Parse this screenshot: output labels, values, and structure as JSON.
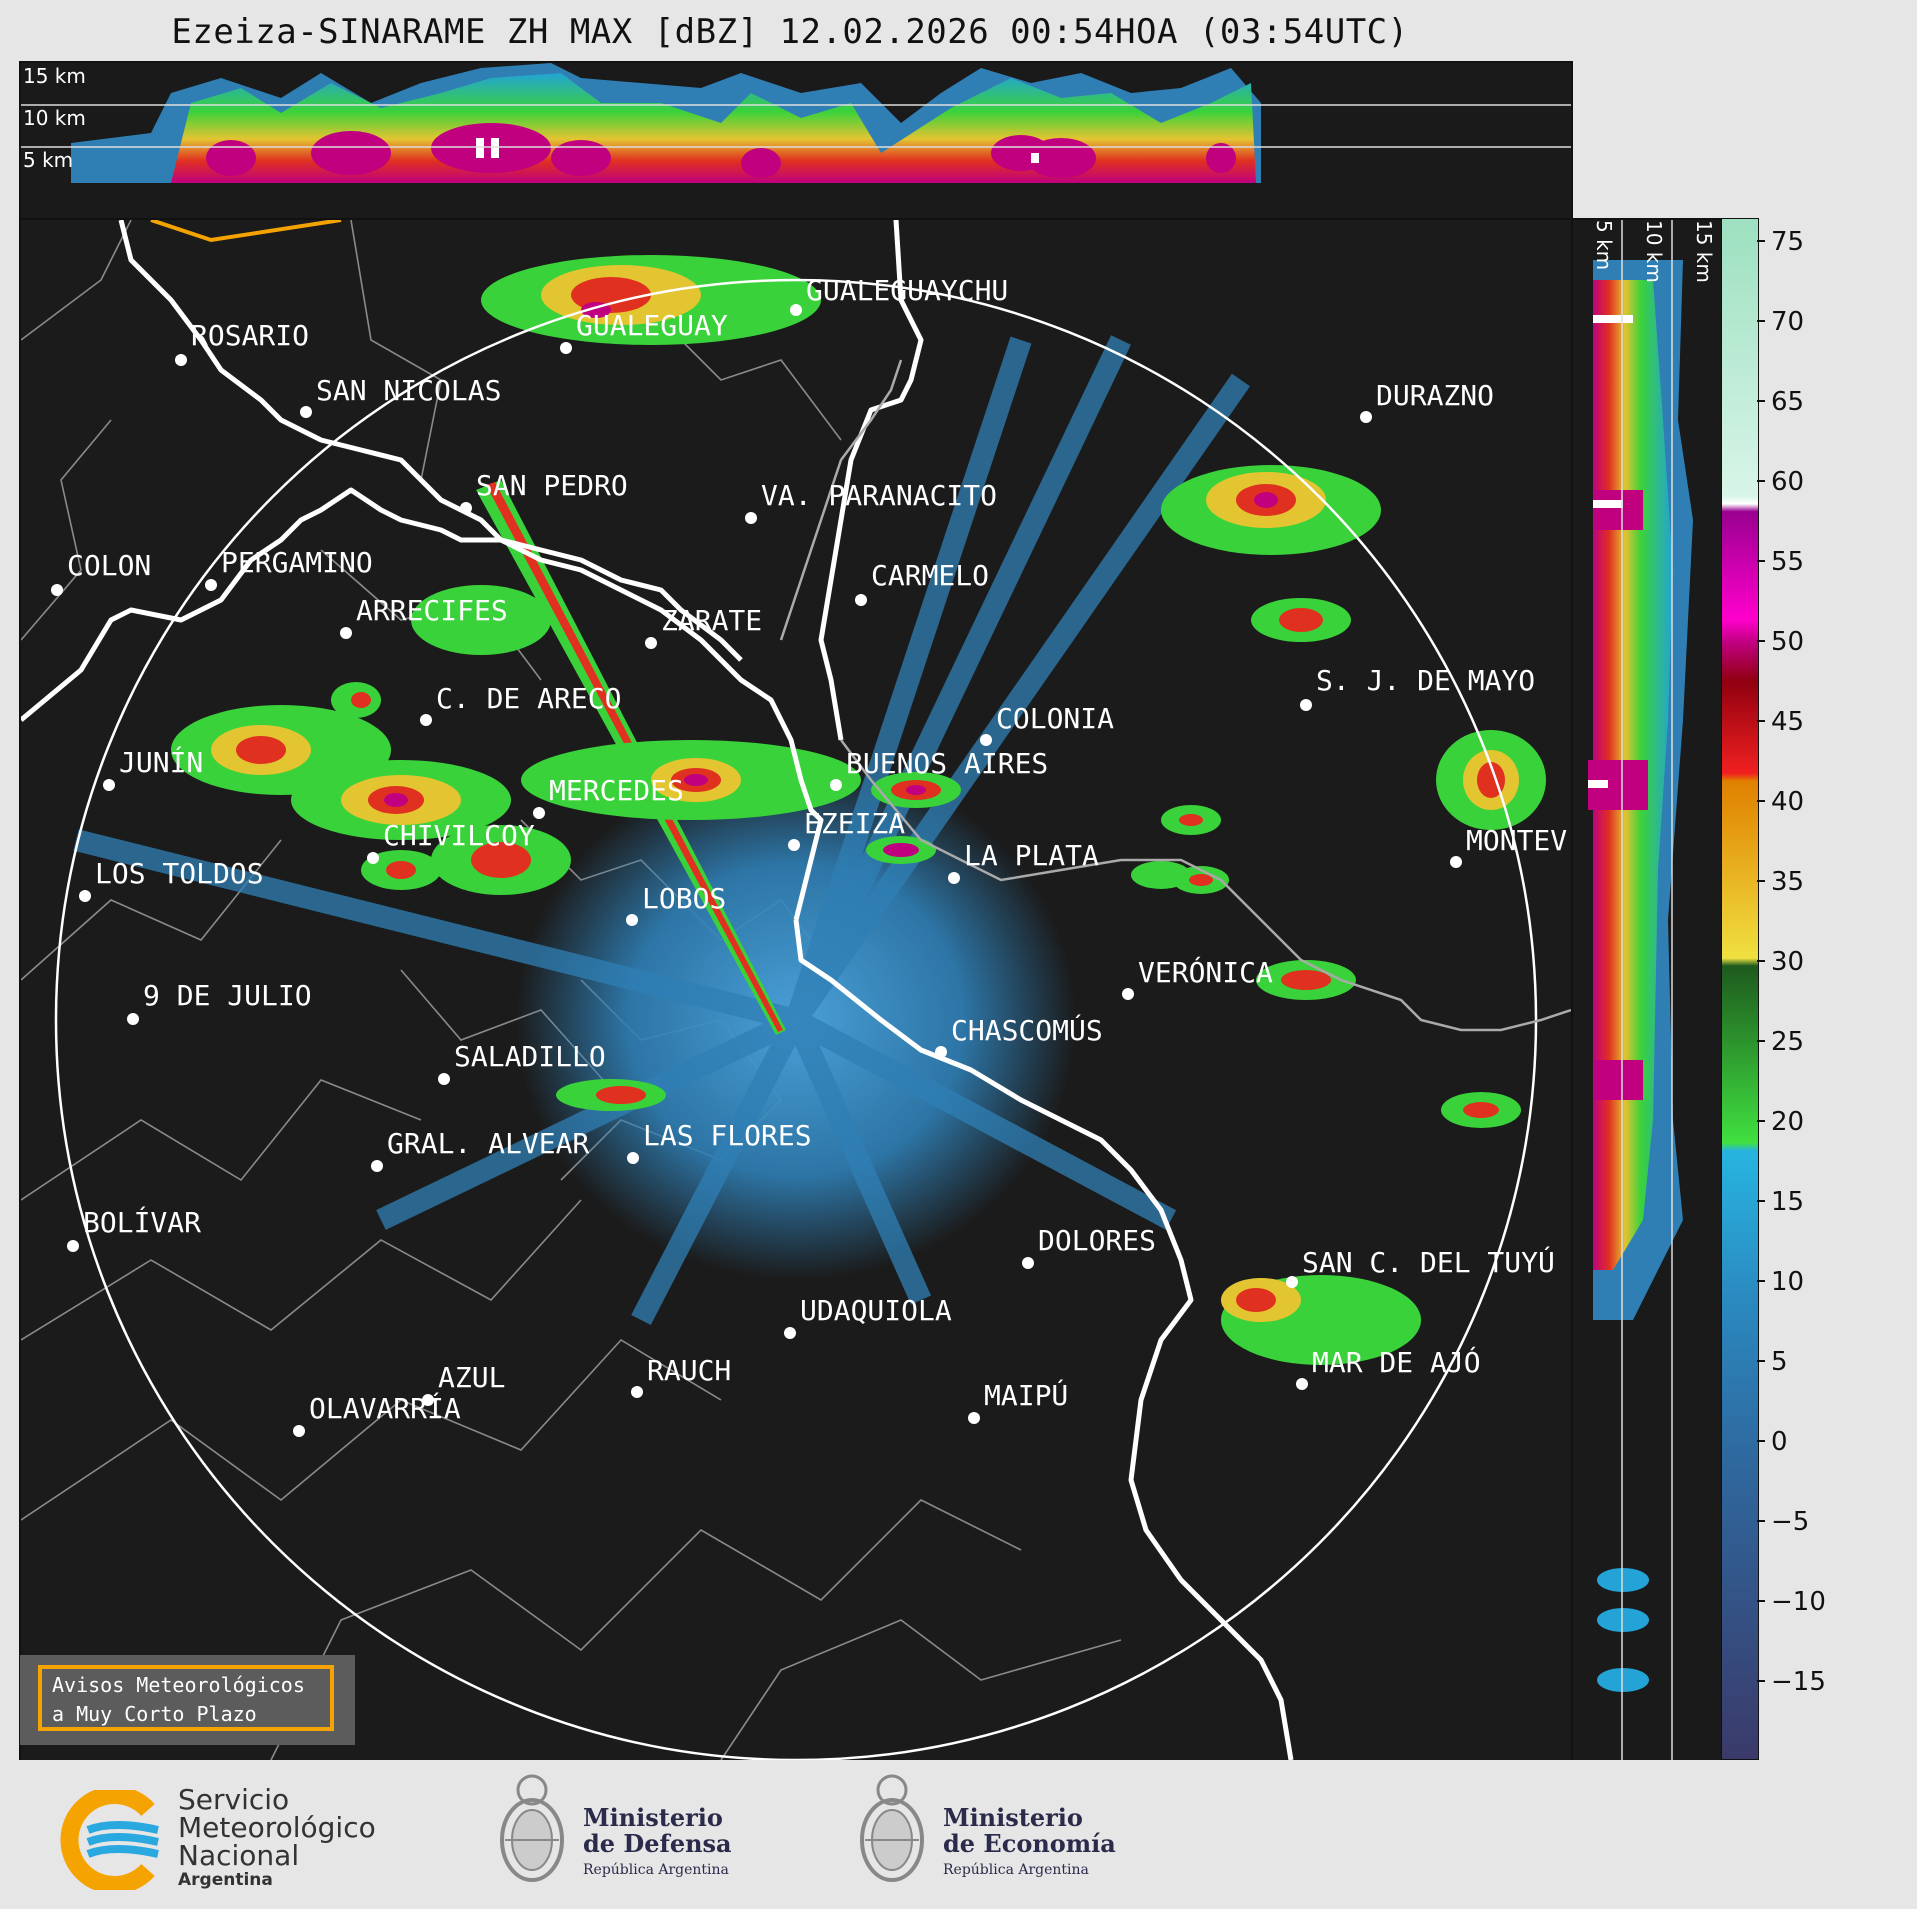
{
  "header": {
    "title": "Ezeiza-SINARAME ZH MAX [dBZ] 12.02.2026 00:54HOA (03:54UTC)"
  },
  "top_panel": {
    "height_labels": [
      "15 km",
      "10 km",
      "5 km"
    ]
  },
  "side_panel": {
    "height_labels": [
      "5 km",
      "10 km",
      "15 km"
    ]
  },
  "colorbar": {
    "ticks": [
      "75",
      "70",
      "65",
      "60",
      "55",
      "50",
      "45",
      "40",
      "35",
      "30",
      "25",
      "20",
      "15",
      "10",
      "5",
      "0",
      "−5",
      "−10",
      "−15"
    ],
    "colors": {
      "lt_m15": "#3b3f6e",
      "m15_0": "#3e5a8c",
      "0_17": "#2f7fb5",
      "17_20": "#23a3d6",
      "20_30": "#2f8f2a",
      "30_42": "#e3c431",
      "42_50": "#e03020",
      "50_58": "#c0007f",
      "58_60": "#ffffff",
      "60_75": "#9de0c0"
    }
  },
  "map": {
    "cities": [
      {
        "name": "ROSARIO"
      },
      {
        "name": "GUALEGUAYCHU"
      },
      {
        "name": "GUALEGUAY"
      },
      {
        "name": "SAN NICOLAS"
      },
      {
        "name": "DURAZNO"
      },
      {
        "name": "SAN PEDRO"
      },
      {
        "name": "VA. PARANACITO"
      },
      {
        "name": "COLON"
      },
      {
        "name": "PERGAMINO"
      },
      {
        "name": "CARMELO"
      },
      {
        "name": "ARRECIFES"
      },
      {
        "name": "ZARATE"
      },
      {
        "name": "S. J. DE MAYO"
      },
      {
        "name": "C. DE ARECO"
      },
      {
        "name": "COLONIA"
      },
      {
        "name": "JUNÍN"
      },
      {
        "name": "BUENOS AIRES"
      },
      {
        "name": "MERCEDES"
      },
      {
        "name": "EZEIZA"
      },
      {
        "name": "MONTEV"
      },
      {
        "name": "CHIVILCOY"
      },
      {
        "name": "LA PLATA"
      },
      {
        "name": "LOS TOLDOS"
      },
      {
        "name": "LOBOS"
      },
      {
        "name": "VERÓNICA"
      },
      {
        "name": "9 DE JULIO"
      },
      {
        "name": "CHASCOMÚS"
      },
      {
        "name": "SALADILLO"
      },
      {
        "name": "GRAL. ALVEAR"
      },
      {
        "name": "LAS FLORES"
      },
      {
        "name": "BOLÍVAR"
      },
      {
        "name": "DOLORES"
      },
      {
        "name": "SAN C. DEL TUYÚ"
      },
      {
        "name": "UDAQUIOLA"
      },
      {
        "name": "MAR DE AJÓ"
      },
      {
        "name": "AZUL"
      },
      {
        "name": "RAUCH"
      },
      {
        "name": "OLAVARRÍA"
      },
      {
        "name": "MAIPÚ"
      }
    ]
  },
  "aviso": {
    "line1": "Avisos Meteorológicos",
    "line2": "a Muy Corto Plazo"
  },
  "footer": {
    "smn": {
      "line1": "Servicio",
      "line2": "Meteorológico",
      "line3": "Nacional",
      "line4": "Argentina"
    },
    "defensa": {
      "line1": "Ministerio",
      "line2": "de Defensa",
      "line3": "República Argentina"
    },
    "economia": {
      "line1": "Ministerio",
      "line2": "de Economía",
      "line3": "República Argentina"
    }
  }
}
